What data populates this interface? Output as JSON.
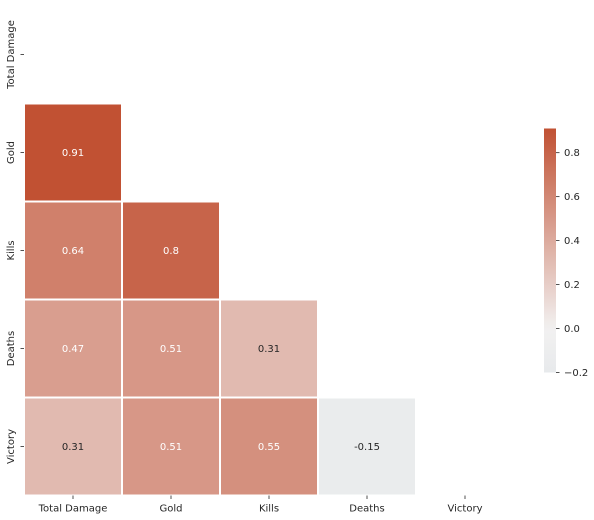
{
  "chart_data": {
    "type": "heatmap",
    "variables": [
      "Total Damage",
      "Gold",
      "Kills",
      "Deaths",
      "Victory"
    ],
    "mask": "upper-triangle-including-diagonal",
    "cells": [
      {
        "row": "Gold",
        "col": "Total Damage",
        "value": 0.91,
        "label": "0.91"
      },
      {
        "row": "Kills",
        "col": "Total Damage",
        "value": 0.64,
        "label": "0.64"
      },
      {
        "row": "Kills",
        "col": "Gold",
        "value": 0.8,
        "label": "0.8"
      },
      {
        "row": "Deaths",
        "col": "Total Damage",
        "value": 0.47,
        "label": "0.47"
      },
      {
        "row": "Deaths",
        "col": "Gold",
        "value": 0.51,
        "label": "0.51"
      },
      {
        "row": "Deaths",
        "col": "Kills",
        "value": 0.31,
        "label": "0.31"
      },
      {
        "row": "Victory",
        "col": "Total Damage",
        "value": 0.31,
        "label": "0.31"
      },
      {
        "row": "Victory",
        "col": "Gold",
        "value": 0.51,
        "label": "0.51"
      },
      {
        "row": "Victory",
        "col": "Kills",
        "value": 0.55,
        "label": "0.55"
      },
      {
        "row": "Victory",
        "col": "Deaths",
        "value": -0.15,
        "label": "-0.15"
      }
    ],
    "colorbar": {
      "vmin": -0.2,
      "vmax": 0.91,
      "ticks": [
        -0.2,
        0.0,
        0.2,
        0.4,
        0.6,
        0.8
      ],
      "tick_labels": [
        "−0.2",
        "0.0",
        "0.2",
        "0.4",
        "0.6",
        "0.8"
      ],
      "colormap": "diverging blue-white-red",
      "low_color": "#c0d0da",
      "mid_color": "#f2f1f1",
      "high_color": "#c15133"
    },
    "grid": false,
    "legend": "right"
  }
}
